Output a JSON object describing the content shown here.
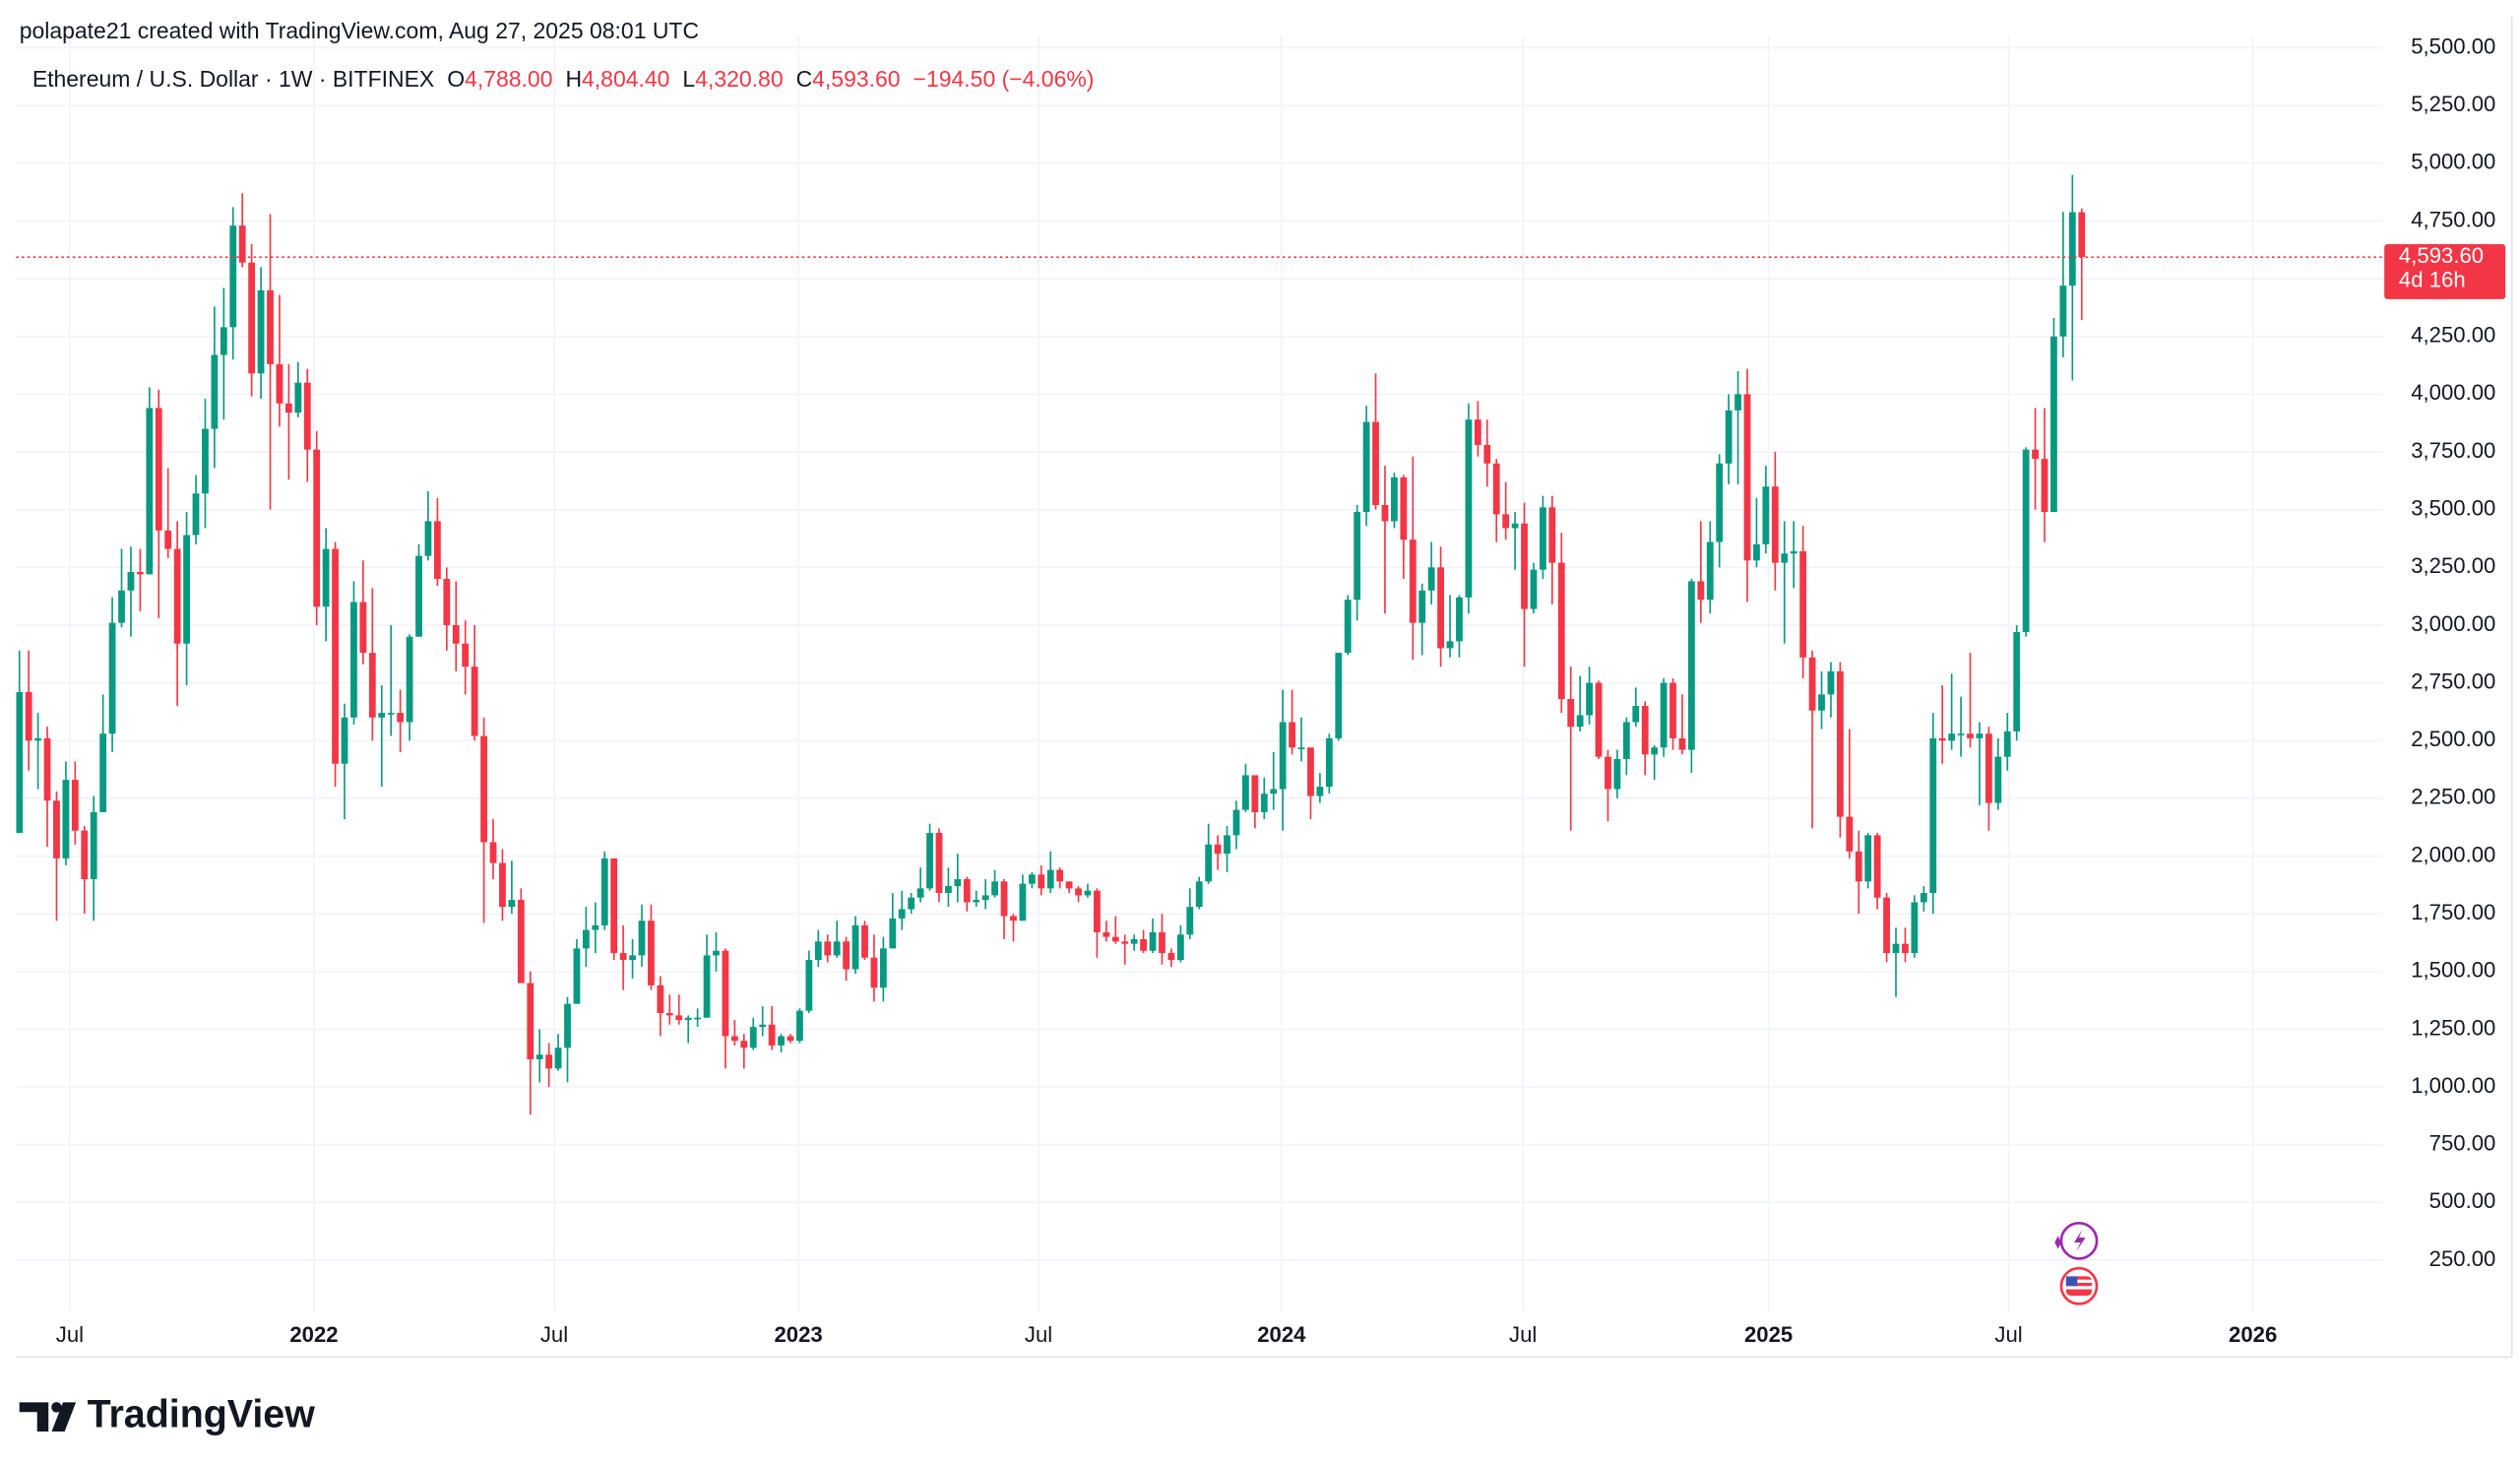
{
  "chart_data": {
    "type": "candlestick",
    "header": "polapate21 created with TradingView.com, Aug 27, 2025 08:01 UTC",
    "legend": {
      "symbol": "Ethereum / U.S. Dollar · 1W · BITFINEX",
      "o_label": "O",
      "o": "4,788.00",
      "h_label": "H",
      "h": "4,804.40",
      "l_label": "L",
      "l": "4,320.80",
      "c_label": "C",
      "c": "4,593.60",
      "change": "−194.50 (−4.06%)"
    },
    "last_price_label": "4,593.60",
    "countdown": "4d 16h",
    "up_color": "#089981",
    "down_color": "#f23645",
    "ohlc": [
      [
        2100,
        2890,
        2100,
        2710
      ],
      [
        2710,
        2890,
        2370,
        2500
      ],
      [
        2500,
        2620,
        2290,
        2510
      ],
      [
        2510,
        2560,
        2040,
        2240
      ],
      [
        2240,
        2280,
        1720,
        1990
      ],
      [
        1990,
        2410,
        1960,
        2330
      ],
      [
        2330,
        2410,
        2050,
        2110
      ],
      [
        2110,
        2130,
        1750,
        1900
      ],
      [
        1900,
        2260,
        1720,
        2190
      ],
      [
        2190,
        2700,
        2190,
        2530
      ],
      [
        2530,
        3120,
        2450,
        3010
      ],
      [
        3010,
        3330,
        2990,
        3150
      ],
      [
        3150,
        3340,
        2950,
        3230
      ],
      [
        3230,
        3330,
        3060,
        3220
      ],
      [
        3220,
        4030,
        3220,
        3940
      ],
      [
        3940,
        4020,
        3030,
        3410
      ],
      [
        3410,
        3680,
        3290,
        3330
      ],
      [
        3330,
        3450,
        2650,
        2920
      ],
      [
        2920,
        3490,
        2740,
        3390
      ],
      [
        3390,
        3650,
        3350,
        3570
      ],
      [
        3570,
        3980,
        3420,
        3850
      ],
      [
        3850,
        4380,
        3680,
        4170
      ],
      [
        4170,
        4460,
        3890,
        4290
      ],
      [
        4290,
        4810,
        4150,
        4730
      ],
      [
        4730,
        4870,
        4550,
        4570
      ],
      [
        4570,
        4650,
        3990,
        4090
      ],
      [
        4090,
        4550,
        3980,
        4450
      ],
      [
        4450,
        4780,
        3500,
        4130
      ],
      [
        4130,
        4430,
        3860,
        3960
      ],
      [
        3960,
        4130,
        3630,
        3920
      ],
      [
        3920,
        4140,
        3900,
        4050
      ],
      [
        4050,
        4110,
        3620,
        3760
      ],
      [
        3760,
        3840,
        3000,
        3080
      ],
      [
        3080,
        3420,
        2930,
        3330
      ],
      [
        3330,
        3360,
        2300,
        2400
      ],
      [
        2400,
        2660,
        2160,
        2600
      ],
      [
        2600,
        3190,
        2570,
        3100
      ],
      [
        3100,
        3280,
        2830,
        2880
      ],
      [
        2880,
        3160,
        2500,
        2600
      ],
      [
        2600,
        2740,
        2300,
        2620
      ],
      [
        2620,
        3000,
        2520,
        2620
      ],
      [
        2620,
        2720,
        2450,
        2580
      ],
      [
        2580,
        2960,
        2500,
        2950
      ],
      [
        2950,
        3350,
        2950,
        3300
      ],
      [
        3300,
        3580,
        3280,
        3450
      ],
      [
        3450,
        3550,
        3170,
        3200
      ],
      [
        3200,
        3250,
        2890,
        3000
      ],
      [
        3000,
        3190,
        2800,
        2920
      ],
      [
        2920,
        3020,
        2700,
        2820
      ],
      [
        2820,
        3000,
        2500,
        2520
      ],
      [
        2520,
        2600,
        1710,
        2060
      ],
      [
        2060,
        2160,
        1900,
        1970
      ],
      [
        1970,
        2030,
        1720,
        1780
      ],
      [
        1780,
        1980,
        1750,
        1810
      ],
      [
        1810,
        1860,
        1450,
        1450
      ],
      [
        1450,
        1500,
        880,
        1120
      ],
      [
        1120,
        1250,
        1020,
        1140
      ],
      [
        1140,
        1190,
        1000,
        1080
      ],
      [
        1080,
        1230,
        1070,
        1170
      ],
      [
        1170,
        1390,
        1020,
        1360
      ],
      [
        1360,
        1640,
        1360,
        1600
      ],
      [
        1600,
        1780,
        1520,
        1680
      ],
      [
        1680,
        1800,
        1580,
        1700
      ],
      [
        1700,
        2020,
        1680,
        1990
      ],
      [
        1990,
        1990,
        1550,
        1580
      ],
      [
        1580,
        1700,
        1420,
        1550
      ],
      [
        1550,
        1640,
        1470,
        1570
      ],
      [
        1570,
        1790,
        1520,
        1720
      ],
      [
        1720,
        1790,
        1420,
        1440
      ],
      [
        1440,
        1480,
        1220,
        1320
      ],
      [
        1320,
        1400,
        1270,
        1310
      ],
      [
        1310,
        1400,
        1270,
        1290
      ],
      [
        1290,
        1310,
        1190,
        1300
      ],
      [
        1300,
        1340,
        1260,
        1300
      ],
      [
        1300,
        1660,
        1300,
        1570
      ],
      [
        1570,
        1670,
        1500,
        1590
      ],
      [
        1590,
        1600,
        1080,
        1220
      ],
      [
        1220,
        1290,
        1180,
        1200
      ],
      [
        1200,
        1230,
        1080,
        1170
      ],
      [
        1170,
        1300,
        1160,
        1260
      ],
      [
        1260,
        1350,
        1220,
        1270
      ],
      [
        1270,
        1350,
        1160,
        1180
      ],
      [
        1180,
        1230,
        1150,
        1220
      ],
      [
        1220,
        1230,
        1190,
        1200
      ],
      [
        1200,
        1340,
        1190,
        1330
      ],
      [
        1330,
        1590,
        1320,
        1550
      ],
      [
        1550,
        1680,
        1520,
        1630
      ],
      [
        1630,
        1660,
        1540,
        1570
      ],
      [
        1570,
        1720,
        1560,
        1630
      ],
      [
        1630,
        1650,
        1460,
        1510
      ],
      [
        1510,
        1740,
        1490,
        1700
      ],
      [
        1700,
        1720,
        1550,
        1560
      ],
      [
        1560,
        1660,
        1370,
        1430
      ],
      [
        1430,
        1650,
        1370,
        1600
      ],
      [
        1600,
        1840,
        1600,
        1730
      ],
      [
        1730,
        1850,
        1680,
        1770
      ],
      [
        1770,
        1840,
        1750,
        1820
      ],
      [
        1820,
        1950,
        1800,
        1860
      ],
      [
        1860,
        2140,
        1850,
        2100
      ],
      [
        2100,
        2120,
        1800,
        1840
      ],
      [
        1840,
        1950,
        1780,
        1870
      ],
      [
        1870,
        2010,
        1800,
        1900
      ],
      [
        1900,
        1910,
        1760,
        1800
      ],
      [
        1800,
        1850,
        1780,
        1810
      ],
      [
        1810,
        1900,
        1770,
        1830
      ],
      [
        1830,
        1940,
        1820,
        1890
      ],
      [
        1890,
        1900,
        1640,
        1740
      ],
      [
        1740,
        1750,
        1630,
        1720
      ],
      [
        1720,
        1920,
        1720,
        1880
      ],
      [
        1880,
        1930,
        1860,
        1920
      ],
      [
        1920,
        1960,
        1830,
        1860
      ],
      [
        1860,
        2020,
        1840,
        1940
      ],
      [
        1940,
        1950,
        1860,
        1890
      ],
      [
        1890,
        1890,
        1840,
        1860
      ],
      [
        1860,
        1870,
        1800,
        1830
      ],
      [
        1830,
        1880,
        1820,
        1850
      ],
      [
        1850,
        1860,
        1560,
        1670
      ],
      [
        1670,
        1720,
        1630,
        1650
      ],
      [
        1650,
        1740,
        1620,
        1630
      ],
      [
        1630,
        1660,
        1530,
        1620
      ],
      [
        1620,
        1660,
        1590,
        1640
      ],
      [
        1640,
        1680,
        1580,
        1590
      ],
      [
        1590,
        1730,
        1580,
        1670
      ],
      [
        1670,
        1750,
        1530,
        1580
      ],
      [
        1580,
        1600,
        1520,
        1550
      ],
      [
        1550,
        1700,
        1540,
        1660
      ],
      [
        1660,
        1860,
        1640,
        1780
      ],
      [
        1780,
        1910,
        1770,
        1890
      ],
      [
        1890,
        2140,
        1880,
        2050
      ],
      [
        2050,
        2090,
        1940,
        2010
      ],
      [
        2010,
        2130,
        1930,
        2090
      ],
      [
        2090,
        2240,
        2030,
        2200
      ],
      [
        2200,
        2400,
        2190,
        2350
      ],
      [
        2350,
        2350,
        2120,
        2190
      ],
      [
        2190,
        2340,
        2160,
        2270
      ],
      [
        2270,
        2450,
        2200,
        2290
      ],
      [
        2290,
        2720,
        2110,
        2580
      ],
      [
        2580,
        2720,
        2440,
        2470
      ],
      [
        2470,
        2600,
        2410,
        2470
      ],
      [
        2470,
        2470,
        2160,
        2260
      ],
      [
        2260,
        2360,
        2230,
        2300
      ],
      [
        2300,
        2530,
        2270,
        2510
      ],
      [
        2510,
        2880,
        2500,
        2880
      ],
      [
        2880,
        3130,
        2870,
        3110
      ],
      [
        3110,
        3520,
        3020,
        3490
      ],
      [
        3490,
        3950,
        3430,
        3880
      ],
      [
        3880,
        4090,
        3500,
        3520
      ],
      [
        3520,
        3690,
        3050,
        3450
      ],
      [
        3450,
        3660,
        3420,
        3640
      ],
      [
        3640,
        3650,
        3200,
        3370
      ],
      [
        3370,
        3730,
        2850,
        3010
      ],
      [
        3010,
        3180,
        2870,
        3150
      ],
      [
        3150,
        3360,
        3090,
        3250
      ],
      [
        3250,
        3340,
        2820,
        2900
      ],
      [
        2900,
        3130,
        2860,
        2930
      ],
      [
        2930,
        3130,
        2860,
        3120
      ],
      [
        3120,
        3960,
        3050,
        3890
      ],
      [
        3890,
        3970,
        3730,
        3780
      ],
      [
        3780,
        3890,
        3600,
        3700
      ],
      [
        3700,
        3720,
        3360,
        3480
      ],
      [
        3480,
        3620,
        3370,
        3420
      ],
      [
        3420,
        3490,
        3240,
        3440
      ],
      [
        3440,
        3530,
        2820,
        3070
      ],
      [
        3070,
        3270,
        3050,
        3240
      ],
      [
        3240,
        3560,
        3200,
        3510
      ],
      [
        3510,
        3560,
        3090,
        3270
      ],
      [
        3270,
        3400,
        2620,
        2680
      ],
      [
        2680,
        2820,
        2110,
        2560
      ],
      [
        2560,
        2780,
        2540,
        2610
      ],
      [
        2610,
        2820,
        2570,
        2750
      ],
      [
        2750,
        2760,
        2420,
        2430
      ],
      [
        2430,
        2460,
        2150,
        2290
      ],
      [
        2290,
        2460,
        2250,
        2420
      ],
      [
        2420,
        2600,
        2350,
        2580
      ],
      [
        2580,
        2730,
        2560,
        2650
      ],
      [
        2650,
        2670,
        2350,
        2440
      ],
      [
        2440,
        2480,
        2330,
        2470
      ],
      [
        2470,
        2770,
        2430,
        2750
      ],
      [
        2750,
        2770,
        2460,
        2510
      ],
      [
        2510,
        2700,
        2440,
        2460
      ],
      [
        2460,
        3200,
        2360,
        3190
      ],
      [
        3190,
        3450,
        3010,
        3110
      ],
      [
        3110,
        3450,
        3050,
        3360
      ],
      [
        3360,
        3740,
        3250,
        3700
      ],
      [
        3700,
        4000,
        3610,
        3930
      ],
      [
        3930,
        4100,
        3610,
        4000
      ],
      [
        4000,
        4110,
        3100,
        3280
      ],
      [
        3280,
        3550,
        3250,
        3350
      ],
      [
        3350,
        3690,
        3310,
        3600
      ],
      [
        3600,
        3750,
        3150,
        3270
      ],
      [
        3270,
        3450,
        2920,
        3310
      ],
      [
        3310,
        3450,
        3160,
        3320
      ],
      [
        3320,
        3430,
        2770,
        2860
      ],
      [
        2860,
        2890,
        2120,
        2630
      ],
      [
        2630,
        2800,
        2550,
        2700
      ],
      [
        2700,
        2840,
        2600,
        2800
      ],
      [
        2800,
        2840,
        2080,
        2170
      ],
      [
        2170,
        2550,
        1990,
        2020
      ],
      [
        2020,
        2110,
        1750,
        1890
      ],
      [
        1890,
        2100,
        1860,
        2090
      ],
      [
        2090,
        2100,
        1770,
        1820
      ],
      [
        1820,
        1840,
        1540,
        1580
      ],
      [
        1580,
        1690,
        1390,
        1620
      ],
      [
        1620,
        1690,
        1540,
        1580
      ],
      [
        1580,
        1830,
        1560,
        1800
      ],
      [
        1800,
        1870,
        1760,
        1840
      ],
      [
        1840,
        2620,
        1750,
        2510
      ],
      [
        2510,
        2740,
        2400,
        2500
      ],
      [
        2500,
        2790,
        2460,
        2530
      ],
      [
        2530,
        2690,
        2430,
        2530
      ],
      [
        2530,
        2880,
        2470,
        2510
      ],
      [
        2510,
        2580,
        2220,
        2530
      ],
      [
        2530,
        2560,
        2110,
        2230
      ],
      [
        2230,
        2510,
        2200,
        2430
      ],
      [
        2430,
        2620,
        2370,
        2540
      ],
      [
        2540,
        3000,
        2500,
        2970
      ],
      [
        2970,
        3770,
        2950,
        3760
      ],
      [
        3760,
        3940,
        3500,
        3720
      ],
      [
        3720,
        3940,
        3360,
        3490
      ],
      [
        3490,
        4330,
        3490,
        4250
      ],
      [
        4250,
        4790,
        4160,
        4470
      ],
      [
        4470,
        4950,
        4060,
        4788
      ],
      [
        4788,
        4804.4,
        4320.8,
        4593.6
      ]
    ],
    "xlim": [
      -0.35,
      254.4
    ],
    "xticks": [
      {
        "value": 5.43,
        "label": "Jul"
      },
      {
        "value": 31.71,
        "label": "2022"
      },
      {
        "value": 57.57,
        "label": "Jul"
      },
      {
        "value": 83.86,
        "label": "2023"
      },
      {
        "value": 109.71,
        "label": "Jul"
      },
      {
        "value": 135.86,
        "label": "2024"
      },
      {
        "value": 161.86,
        "label": "Jul"
      },
      {
        "value": 188.29,
        "label": "2025"
      },
      {
        "value": 214.14,
        "label": "Jul"
      },
      {
        "value": 240.43,
        "label": "2026"
      }
    ],
    "ylim": [
      26,
      5553
    ],
    "yticks": [
      {
        "value": 250,
        "label": "250.00"
      },
      {
        "value": 500,
        "label": "500.00"
      },
      {
        "value": 750,
        "label": "750.00"
      },
      {
        "value": 1000,
        "label": "1,000.00"
      },
      {
        "value": 1250,
        "label": "1,250.00"
      },
      {
        "value": 1500,
        "label": "1,500.00"
      },
      {
        "value": 1750,
        "label": "1,750.00"
      },
      {
        "value": 2000,
        "label": "2,000.00"
      },
      {
        "value": 2250,
        "label": "2,250.00"
      },
      {
        "value": 2500,
        "label": "2,500.00"
      },
      {
        "value": 2750,
        "label": "2,750.00"
      },
      {
        "value": 3000,
        "label": "3,000.00"
      },
      {
        "value": 3250,
        "label": "3,250.00"
      },
      {
        "value": 3500,
        "label": "3,500.00"
      },
      {
        "value": 3750,
        "label": "3,750.00"
      },
      {
        "value": 4000,
        "label": "4,000.00"
      },
      {
        "value": 4250,
        "label": "4,250.00"
      },
      {
        "value": 4500,
        "label": "4,500.00"
      },
      {
        "value": 4750,
        "label": "4,750.00"
      },
      {
        "value": 5000,
        "label": "5,000.00"
      },
      {
        "value": 5250,
        "label": "5,250.00"
      },
      {
        "value": 5500,
        "label": "5,500.00"
      }
    ],
    "grid": true
  },
  "branding": "TradingView"
}
